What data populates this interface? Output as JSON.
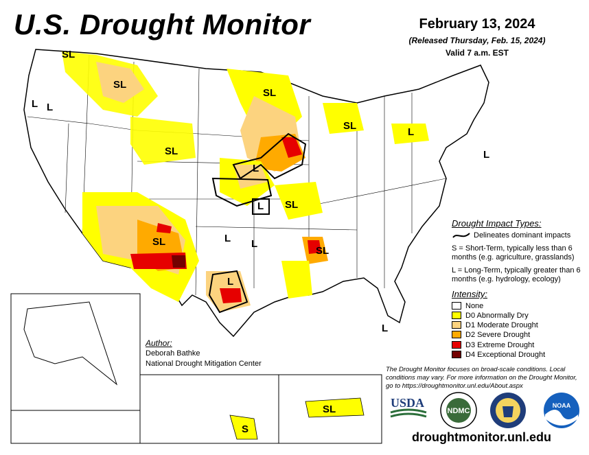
{
  "header": {
    "title": "U.S. Drought Monitor",
    "date": "February 13, 2024",
    "released": "(Released Thursday, Feb. 15, 2024)",
    "valid": "Valid 7 a.m. EST"
  },
  "impact_types": {
    "title": "Drought Impact Types:",
    "delineates": "Delineates dominant impacts",
    "short_term": "S = Short-Term, typically less than 6 months (e.g. agriculture, grasslands)",
    "long_term": "L = Long-Term, typically greater than 6 months (e.g. hydrology, ecology)"
  },
  "intensity": {
    "title": "Intensity:",
    "levels": [
      {
        "label": "None",
        "color": "#ffffff"
      },
      {
        "label": "D0 Abnormally Dry",
        "color": "#ffff00"
      },
      {
        "label": "D1 Moderate Drought",
        "color": "#fcd37f"
      },
      {
        "label": "D2 Severe Drought",
        "color": "#ffaa00"
      },
      {
        "label": "D3 Extreme Drought",
        "color": "#e60000"
      },
      {
        "label": "D4 Exceptional Drought",
        "color": "#730000"
      }
    ]
  },
  "author": {
    "title": "Author:",
    "name": "Deborah Bathke",
    "org": "National Drought Mitigation Center"
  },
  "disclaimer": "The Drought Monitor focuses on broad-scale conditions. Local conditions may vary. For more information on the Drought Monitor, go to https://droughtmonitor.unl.edu/About.aspx",
  "url": "droughtmonitor.unl.edu",
  "logos": {
    "usda": "USDA",
    "ndmc": "NDMC",
    "noaa": "NOAA"
  },
  "map_labels": {
    "sl": "SL",
    "l": "L",
    "s": "S"
  }
}
